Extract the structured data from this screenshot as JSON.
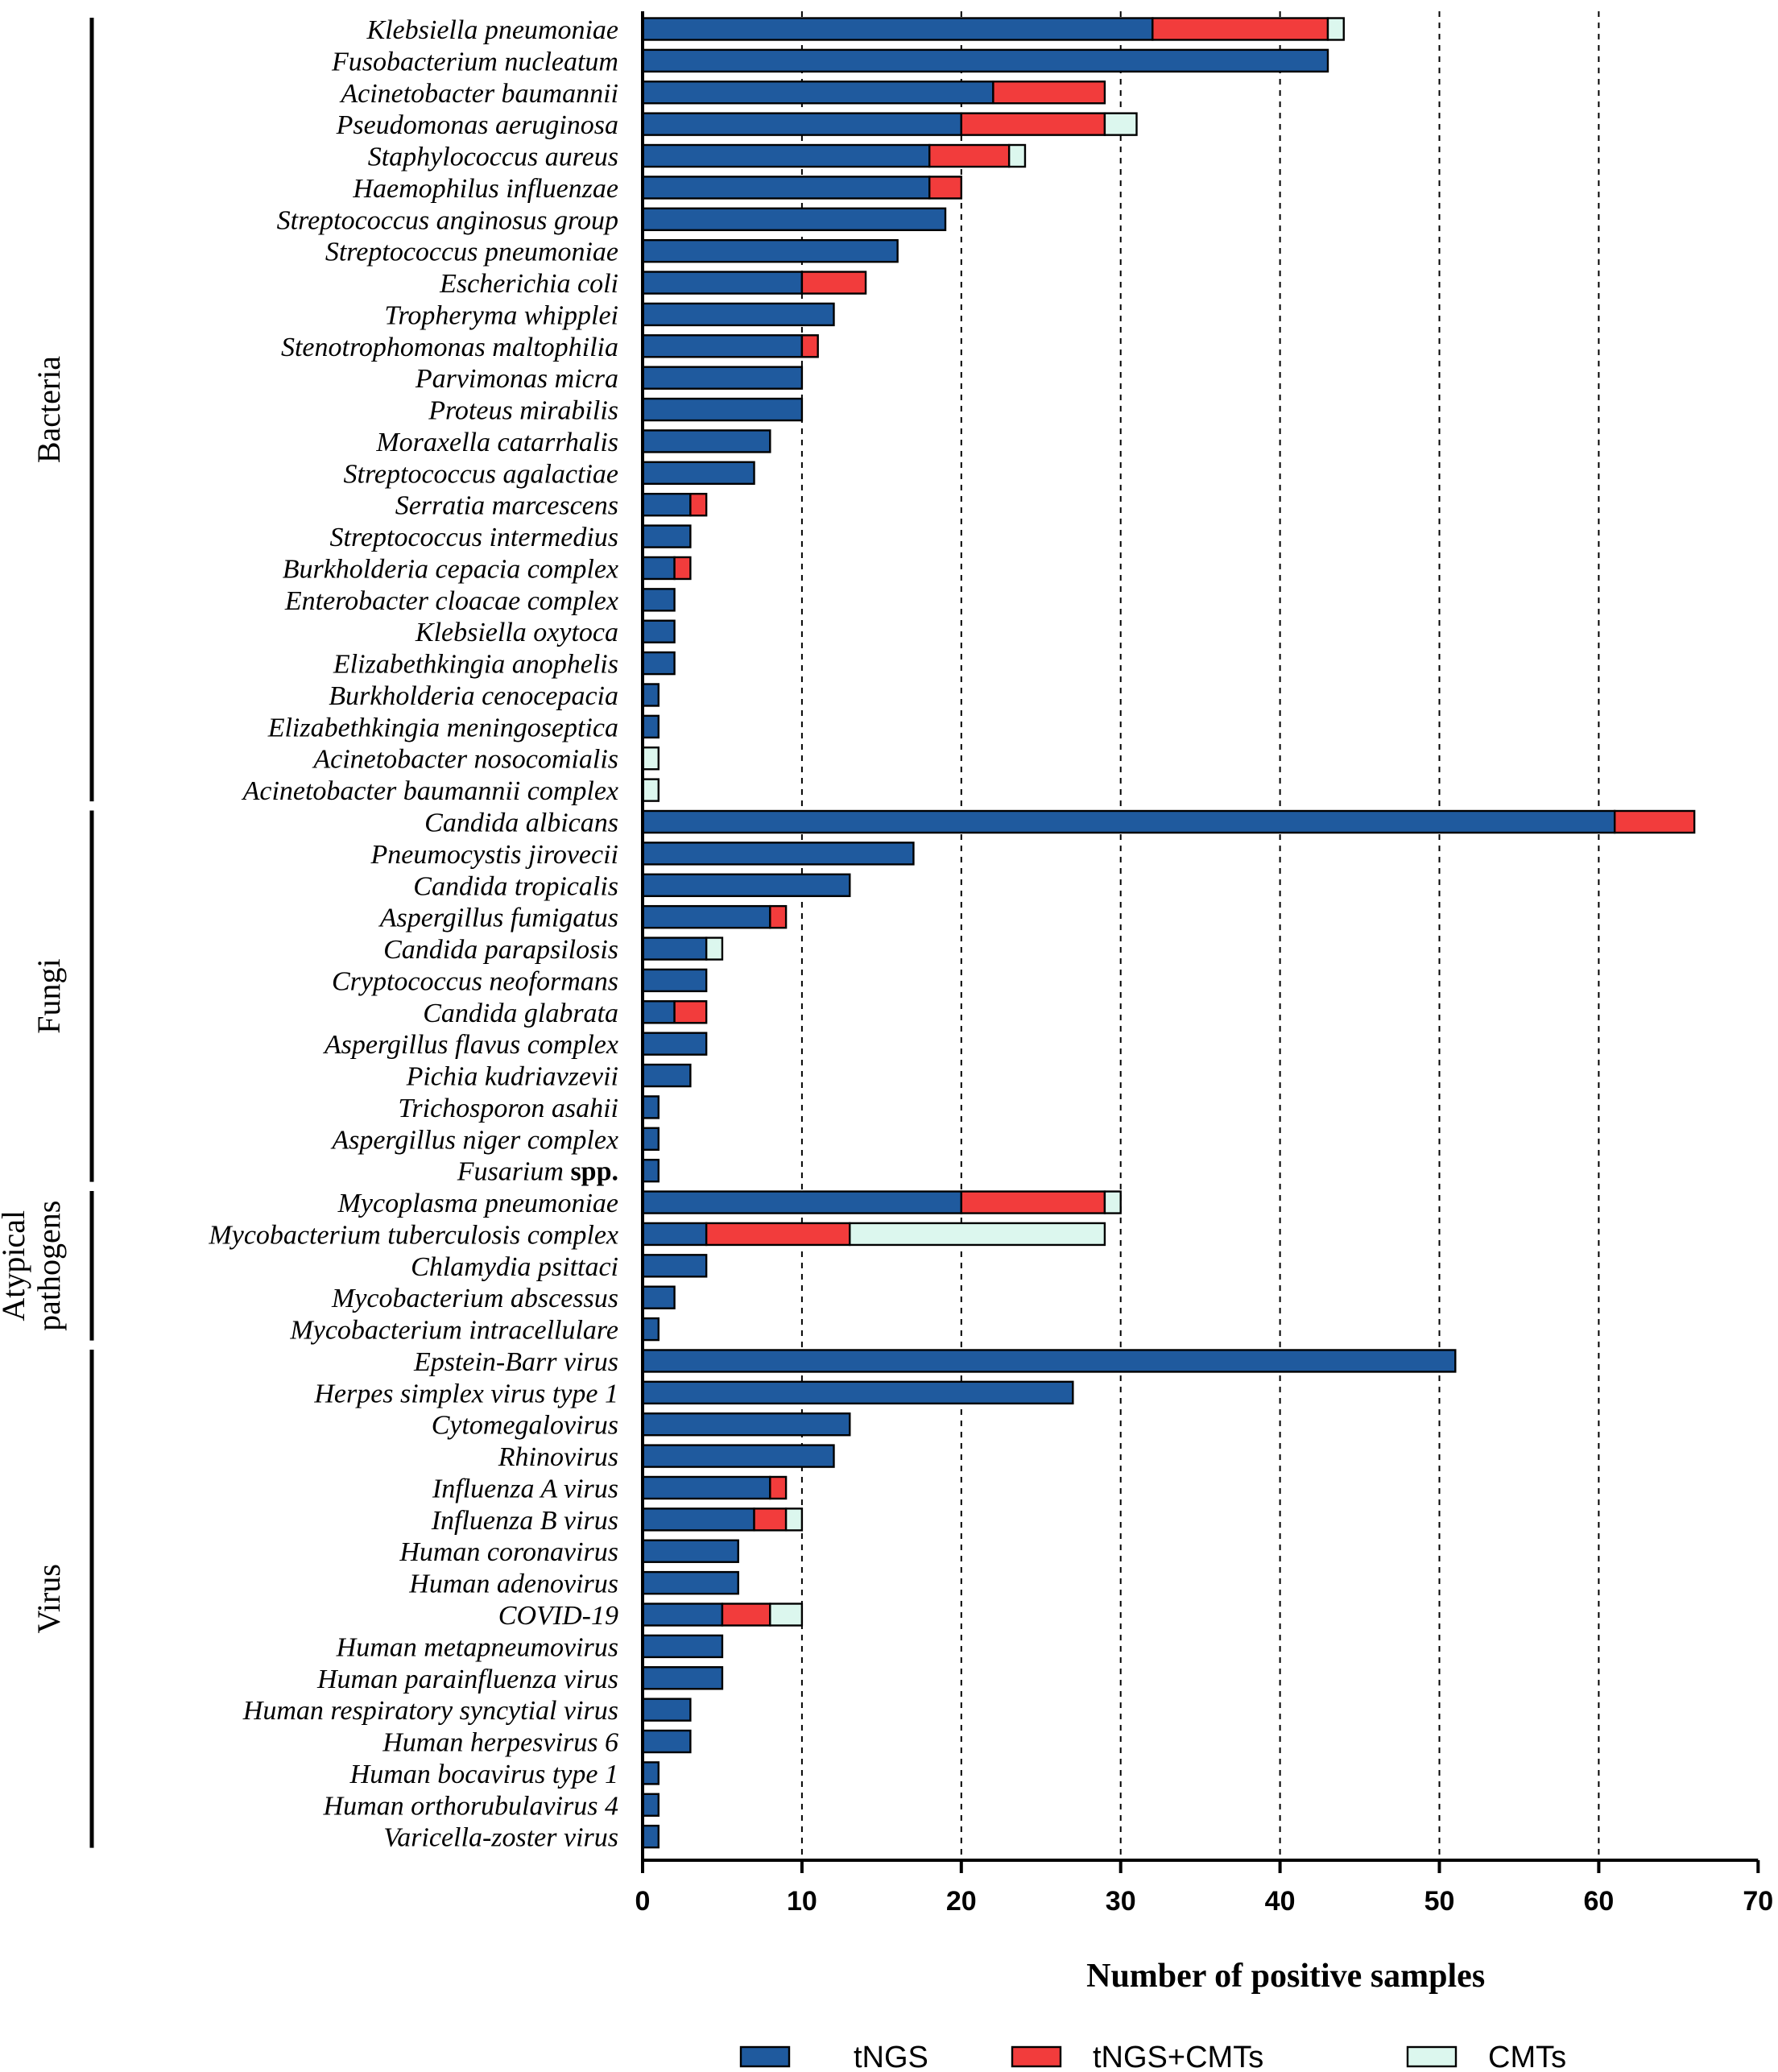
{
  "chart_data": {
    "type": "bar",
    "orientation": "horizontal",
    "stacked": true,
    "title": "",
    "xlabel": "Number of positive samples",
    "ylabel": "",
    "xlim": [
      0,
      70
    ],
    "xticks": [
      0,
      10,
      20,
      30,
      40,
      50,
      60,
      70
    ],
    "gridlines": "dashed vertical at 10, 20, 30, 40, 50, 60",
    "legend_position": "bottom",
    "colors": {
      "tNGS": "#1f5a9e",
      "tNGS+CMTs": "#f23c3c",
      "CMTs": "#dcf7ee"
    },
    "series_names": [
      "tNGS",
      "tNGS+CMTs",
      "CMTs"
    ],
    "groups": [
      {
        "name": "Bacteria",
        "lines": [
          "Bacteria"
        ],
        "start": 0,
        "end": 24
      },
      {
        "name": "Fungi",
        "lines": [
          "Fungi"
        ],
        "start": 25,
        "end": 36
      },
      {
        "name": "Atypical pathogens",
        "lines": [
          "Atypical",
          "pathogens"
        ],
        "start": 37,
        "end": 41
      },
      {
        "name": "Virus",
        "lines": [
          "Virus"
        ],
        "start": 42,
        "end": 57
      }
    ],
    "categories": [
      {
        "label": "Klebsiella pneumoniae",
        "suffix": "",
        "values": [
          32,
          11,
          1
        ]
      },
      {
        "label": "Fusobacterium nucleatum",
        "suffix": "",
        "values": [
          43,
          0,
          0
        ]
      },
      {
        "label": "Acinetobacter baumannii",
        "suffix": "",
        "values": [
          22,
          7,
          0
        ]
      },
      {
        "label": "Pseudomonas aeruginosa",
        "suffix": "",
        "values": [
          20,
          9,
          2
        ]
      },
      {
        "label": "Staphylococcus aureus",
        "suffix": "",
        "values": [
          18,
          5,
          1
        ]
      },
      {
        "label": "Haemophilus influenzae",
        "suffix": "",
        "values": [
          18,
          2,
          0
        ]
      },
      {
        "label": "Streptococcus anginosus group",
        "suffix": "",
        "values": [
          19,
          0,
          0
        ]
      },
      {
        "label": "Streptococcus pneumoniae",
        "suffix": "",
        "values": [
          16,
          0,
          0
        ]
      },
      {
        "label": "Escherichia coli",
        "suffix": "",
        "values": [
          10,
          4,
          0
        ]
      },
      {
        "label": "Tropheryma whipplei",
        "suffix": "",
        "values": [
          12,
          0,
          0
        ]
      },
      {
        "label": "Stenotrophomonas maltophilia",
        "suffix": "",
        "values": [
          10,
          1,
          0
        ]
      },
      {
        "label": "Parvimonas micra",
        "suffix": "",
        "values": [
          10,
          0,
          0
        ]
      },
      {
        "label": "Proteus mirabilis",
        "suffix": "",
        "values": [
          10,
          0,
          0
        ]
      },
      {
        "label": "Moraxella catarrhalis",
        "suffix": "",
        "values": [
          8,
          0,
          0
        ]
      },
      {
        "label": "Streptococcus agalactiae",
        "suffix": "",
        "values": [
          7,
          0,
          0
        ]
      },
      {
        "label": "Serratia marcescens",
        "suffix": "",
        "values": [
          3,
          1,
          0
        ]
      },
      {
        "label": "Streptococcus intermedius",
        "suffix": "",
        "values": [
          3,
          0,
          0
        ]
      },
      {
        "label": "Burkholderia cepacia complex",
        "suffix": "",
        "values": [
          2,
          1,
          0
        ]
      },
      {
        "label": "Enterobacter cloacae complex",
        "suffix": "",
        "values": [
          2,
          0,
          0
        ]
      },
      {
        "label": "Klebsiella oxytoca",
        "suffix": "",
        "values": [
          2,
          0,
          0
        ]
      },
      {
        "label": "Elizabethkingia anophelis",
        "suffix": "",
        "values": [
          2,
          0,
          0
        ]
      },
      {
        "label": "Burkholderia cenocepacia",
        "suffix": "",
        "values": [
          1,
          0,
          0
        ]
      },
      {
        "label": "Elizabethkingia meningoseptica",
        "suffix": "",
        "values": [
          1,
          0,
          0
        ]
      },
      {
        "label": "Acinetobacter nosocomialis",
        "suffix": "",
        "values": [
          0,
          0,
          1
        ]
      },
      {
        "label": "Acinetobacter baumannii complex",
        "suffix": "",
        "values": [
          0,
          0,
          1
        ]
      },
      {
        "label": "Candida albicans",
        "suffix": "",
        "values": [
          61,
          5,
          0
        ]
      },
      {
        "label": "Pneumocystis jirovecii",
        "suffix": "",
        "values": [
          17,
          0,
          0
        ]
      },
      {
        "label": "Candida tropicalis",
        "suffix": "",
        "values": [
          13,
          0,
          0
        ]
      },
      {
        "label": "Aspergillus fumigatus",
        "suffix": "",
        "values": [
          8,
          1,
          0
        ]
      },
      {
        "label": "Candida parapsilosis",
        "suffix": "",
        "values": [
          4,
          0,
          1
        ]
      },
      {
        "label": "Cryptococcus neoformans",
        "suffix": "",
        "values": [
          4,
          0,
          0
        ]
      },
      {
        "label": "Candida glabrata",
        "suffix": "",
        "values": [
          2,
          2,
          0
        ]
      },
      {
        "label": "Aspergillus flavus complex",
        "suffix": "",
        "values": [
          4,
          0,
          0
        ]
      },
      {
        "label": "Pichia kudriavzevii",
        "suffix": "",
        "values": [
          3,
          0,
          0
        ]
      },
      {
        "label": "Trichosporon asahii",
        "suffix": "",
        "values": [
          1,
          0,
          0
        ]
      },
      {
        "label": "Aspergillus niger complex",
        "suffix": "",
        "values": [
          1,
          0,
          0
        ]
      },
      {
        "label": "Fusarium",
        "suffix": "spp.",
        "values": [
          1,
          0,
          0
        ]
      },
      {
        "label": "Mycoplasma pneumoniae",
        "suffix": "",
        "values": [
          20,
          9,
          1
        ]
      },
      {
        "label": "Mycobacterium tuberculosis complex",
        "suffix": "",
        "values": [
          4,
          9,
          16
        ]
      },
      {
        "label": "Chlamydia psittaci",
        "suffix": "",
        "values": [
          4,
          0,
          0
        ]
      },
      {
        "label": "Mycobacterium abscessus",
        "suffix": "",
        "values": [
          2,
          0,
          0
        ]
      },
      {
        "label": "Mycobacterium intracellulare",
        "suffix": "",
        "values": [
          1,
          0,
          0
        ]
      },
      {
        "label": "Epstein-Barr virus",
        "suffix": "",
        "values": [
          51,
          0,
          0
        ]
      },
      {
        "label": "Herpes simplex virus type 1",
        "suffix": "",
        "values": [
          27,
          0,
          0
        ]
      },
      {
        "label": "Cytomegalovirus",
        "suffix": "",
        "values": [
          13,
          0,
          0
        ]
      },
      {
        "label": "Rhinovirus",
        "suffix": "",
        "values": [
          12,
          0,
          0
        ]
      },
      {
        "label": "Influenza A virus",
        "suffix": "",
        "values": [
          8,
          1,
          0
        ]
      },
      {
        "label": "Influenza B virus",
        "suffix": "",
        "values": [
          7,
          2,
          1
        ]
      },
      {
        "label": "Human coronavirus",
        "suffix": "",
        "values": [
          6,
          0,
          0
        ]
      },
      {
        "label": "Human adenovirus",
        "suffix": "",
        "values": [
          6,
          0,
          0
        ]
      },
      {
        "label": "COVID-19",
        "suffix": "",
        "values": [
          5,
          3,
          2
        ]
      },
      {
        "label": "Human metapneumovirus",
        "suffix": "",
        "values": [
          5,
          0,
          0
        ]
      },
      {
        "label": "Human parainfluenza virus",
        "suffix": "",
        "values": [
          5,
          0,
          0
        ]
      },
      {
        "label": "Human respiratory syncytial virus",
        "suffix": "",
        "values": [
          3,
          0,
          0
        ]
      },
      {
        "label": "Human herpesvirus 6",
        "suffix": "",
        "values": [
          3,
          0,
          0
        ]
      },
      {
        "label": "Human bocavirus type 1",
        "suffix": "",
        "values": [
          1,
          0,
          0
        ]
      },
      {
        "label": "Human orthorubulavirus 4",
        "suffix": "",
        "values": [
          1,
          0,
          0
        ]
      },
      {
        "label": "Varicella-zoster virus",
        "suffix": "",
        "values": [
          1,
          0,
          0
        ]
      }
    ]
  }
}
